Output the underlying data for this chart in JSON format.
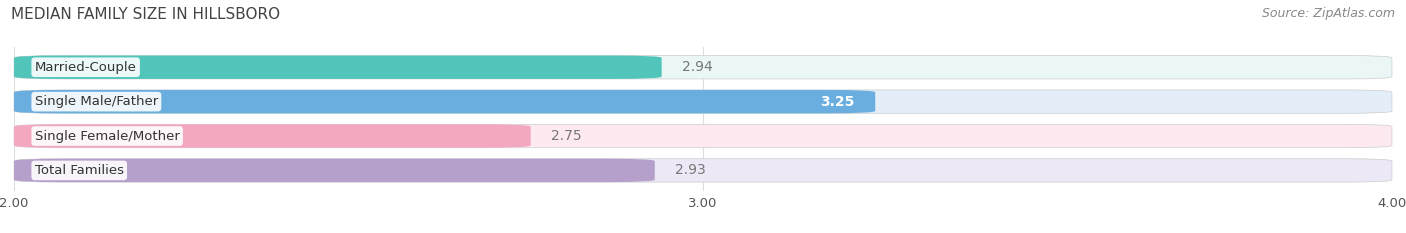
{
  "title": "MEDIAN FAMILY SIZE IN HILLSBORO",
  "source": "Source: ZipAtlas.com",
  "categories": [
    "Married-Couple",
    "Single Male/Father",
    "Single Female/Mother",
    "Total Families"
  ],
  "values": [
    2.94,
    3.25,
    2.75,
    2.93
  ],
  "bar_colors": [
    "#52c5ba",
    "#6aaee0",
    "#f4a8c0",
    "#b5a0cc"
  ],
  "bar_bg_colors": [
    "#eaf7f6",
    "#e3eef8",
    "#fdeaf1",
    "#ede8f5"
  ],
  "value_colors": [
    "#777777",
    "#ffffff",
    "#777777",
    "#777777"
  ],
  "value_bold": [
    false,
    true,
    false,
    false
  ],
  "xlim_min": 2.0,
  "xlim_max": 4.0,
  "xticks": [
    2.0,
    3.0,
    4.0
  ],
  "xtick_labels": [
    "2.00",
    "3.00",
    "4.00"
  ],
  "value_fontsize": 10,
  "label_fontsize": 9.5,
  "title_fontsize": 11,
  "source_fontsize": 9,
  "background_color": "#ffffff"
}
